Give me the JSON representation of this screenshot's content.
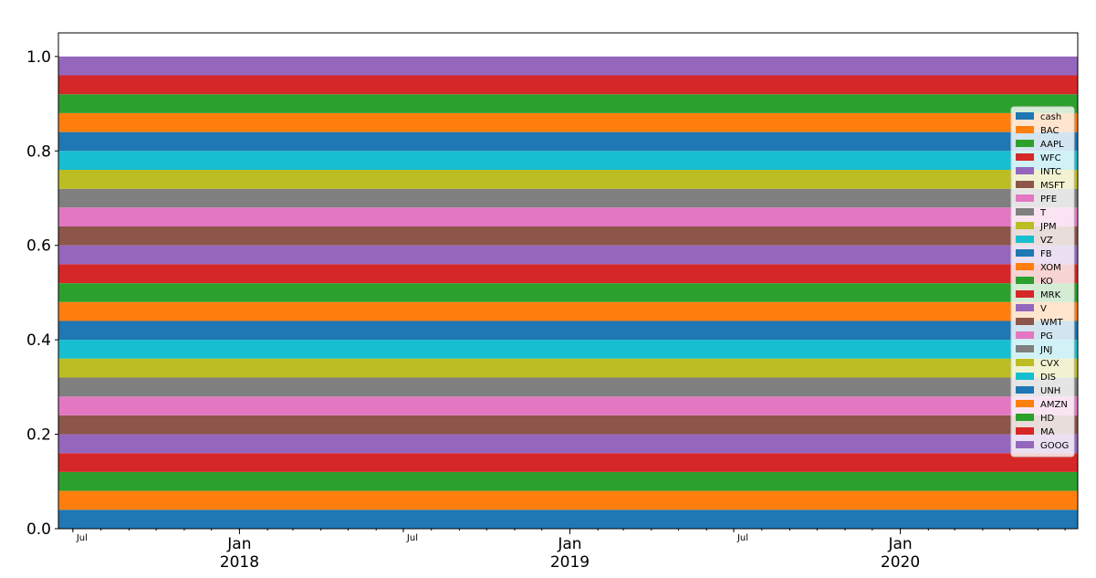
{
  "chart_data": {
    "type": "area",
    "stacked": true,
    "x": [
      "2017-06-15",
      "2020-07-15"
    ],
    "ylim": [
      0,
      1.05
    ],
    "yticks": [
      "0.0",
      "0.2",
      "0.4",
      "0.6",
      "0.8",
      "1.0"
    ],
    "ytick_values": [
      0,
      0.2,
      0.4,
      0.6,
      0.8,
      1.0
    ],
    "xticks_minor": [
      {
        "date": "2017-07-01",
        "label": "Jul"
      },
      {
        "date": "2018-07-01",
        "label": "Jul"
      },
      {
        "date": "2019-07-01",
        "label": "Jul"
      }
    ],
    "xticks_major": [
      {
        "date": "2018-01-01",
        "month": "Jan",
        "year": "2018"
      },
      {
        "date": "2019-01-01",
        "month": "Jan",
        "year": "2019"
      },
      {
        "date": "2020-01-01",
        "month": "Jan",
        "year": "2020"
      }
    ],
    "legend_position": "right",
    "series": [
      {
        "name": "cash",
        "color": "#1f77b4",
        "values": [
          0.04,
          0.04
        ]
      },
      {
        "name": "BAC",
        "color": "#ff7f0e",
        "values": [
          0.04,
          0.04
        ]
      },
      {
        "name": "AAPL",
        "color": "#2ca02c",
        "values": [
          0.04,
          0.04
        ]
      },
      {
        "name": "WFC",
        "color": "#d62728",
        "values": [
          0.04,
          0.04
        ]
      },
      {
        "name": "INTC",
        "color": "#9467bd",
        "values": [
          0.04,
          0.04
        ]
      },
      {
        "name": "MSFT",
        "color": "#8c564b",
        "values": [
          0.04,
          0.04
        ]
      },
      {
        "name": "PFE",
        "color": "#e377c2",
        "values": [
          0.04,
          0.04
        ]
      },
      {
        "name": "T",
        "color": "#7f7f7f",
        "values": [
          0.04,
          0.04
        ]
      },
      {
        "name": "JPM",
        "color": "#bcbd22",
        "values": [
          0.04,
          0.04
        ]
      },
      {
        "name": "VZ",
        "color": "#17becf",
        "values": [
          0.04,
          0.04
        ]
      },
      {
        "name": "FB",
        "color": "#1f77b4",
        "values": [
          0.04,
          0.04
        ]
      },
      {
        "name": "XOM",
        "color": "#ff7f0e",
        "values": [
          0.04,
          0.04
        ]
      },
      {
        "name": "KO",
        "color": "#2ca02c",
        "values": [
          0.04,
          0.04
        ]
      },
      {
        "name": "MRK",
        "color": "#d62728",
        "values": [
          0.04,
          0.04
        ]
      },
      {
        "name": "V",
        "color": "#9467bd",
        "values": [
          0.04,
          0.04
        ]
      },
      {
        "name": "WMT",
        "color": "#8c564b",
        "values": [
          0.04,
          0.04
        ]
      },
      {
        "name": "PG",
        "color": "#e377c2",
        "values": [
          0.04,
          0.04
        ]
      },
      {
        "name": "JNJ",
        "color": "#7f7f7f",
        "values": [
          0.04,
          0.04
        ]
      },
      {
        "name": "CVX",
        "color": "#bcbd22",
        "values": [
          0.04,
          0.04
        ]
      },
      {
        "name": "DIS",
        "color": "#17becf",
        "values": [
          0.04,
          0.04
        ]
      },
      {
        "name": "UNH",
        "color": "#1f77b4",
        "values": [
          0.04,
          0.04
        ]
      },
      {
        "name": "AMZN",
        "color": "#ff7f0e",
        "values": [
          0.04,
          0.04
        ]
      },
      {
        "name": "HD",
        "color": "#2ca02c",
        "values": [
          0.04,
          0.04
        ]
      },
      {
        "name": "MA",
        "color": "#d62728",
        "values": [
          0.04,
          0.04
        ]
      },
      {
        "name": "GOOG",
        "color": "#9467bd",
        "values": [
          0.04,
          0.04
        ]
      }
    ]
  }
}
